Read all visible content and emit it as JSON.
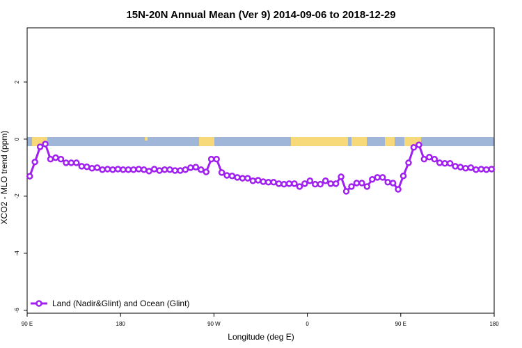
{
  "chart_data": {
    "type": "line",
    "title": "15N-20N Annual Mean (Ver 9)   2014-09-06 to 2018-12-29",
    "x_label": "Longitude (deg E)",
    "y_label": "XCO2 - MLO trend (ppm)",
    "xlim": [
      90,
      540
    ],
    "ylim": [
      -6.1,
      3.9
    ],
    "xticks": [
      {
        "value": 90,
        "label": "90 E"
      },
      {
        "value": 180,
        "label": "180"
      },
      {
        "value": 270,
        "label": "90 W"
      },
      {
        "value": 360,
        "label": "0"
      },
      {
        "value": 450,
        "label": "90 E"
      },
      {
        "value": 540,
        "label": "180"
      }
    ],
    "yticks": [
      -6,
      -4,
      -2,
      0,
      2
    ],
    "legend": "bottom-left",
    "x": [
      92.5,
      97.5,
      102.5,
      107.5,
      112.5,
      117.5,
      122.5,
      127.5,
      132.5,
      137.5,
      142.5,
      147.5,
      152.5,
      157.5,
      162.5,
      167.5,
      172.5,
      177.5,
      182.5,
      187.5,
      192.5,
      197.5,
      202.5,
      207.5,
      212.5,
      217.5,
      222.5,
      227.5,
      232.5,
      237.5,
      242.5,
      247.5,
      252.5,
      257.5,
      262.5,
      267.5,
      272.5,
      277.5,
      282.5,
      287.5,
      292.5,
      297.5,
      302.5,
      307.5,
      312.5,
      317.5,
      322.5,
      327.5,
      332.5,
      337.5,
      342.5,
      347.5,
      352.5,
      357.5,
      362.5,
      367.5,
      372.5,
      377.5,
      382.5,
      387.5,
      392.5,
      397.5,
      402.5,
      407.5,
      412.5,
      417.5,
      422.5,
      427.5,
      432.5,
      437.5,
      442.5,
      447.5,
      452.5,
      457.5,
      462.5,
      467.5,
      472.5,
      477.5,
      482.5,
      487.5,
      492.5,
      497.5,
      502.5,
      507.5,
      512.5,
      517.5,
      522.5,
      527.5,
      532.5,
      537.5
    ],
    "series": [
      {
        "name": "Land (Nadir&Glint) and Ocean (Glint)",
        "color": "#a020f0",
        "values": [
          -1.3,
          -0.8,
          -0.27,
          -0.17,
          -0.7,
          -0.65,
          -0.7,
          -0.83,
          -0.83,
          -0.83,
          -0.95,
          -0.97,
          -1.02,
          -1.0,
          -1.07,
          -1.05,
          -1.07,
          -1.05,
          -1.07,
          -1.07,
          -1.07,
          -1.05,
          -1.07,
          -1.12,
          -1.05,
          -1.1,
          -1.07,
          -1.07,
          -1.1,
          -1.1,
          -1.07,
          -1.0,
          -0.98,
          -1.07,
          -1.15,
          -0.7,
          -0.7,
          -1.17,
          -1.27,
          -1.29,
          -1.34,
          -1.37,
          -1.37,
          -1.46,
          -1.44,
          -1.49,
          -1.51,
          -1.51,
          -1.56,
          -1.58,
          -1.56,
          -1.56,
          -1.66,
          -1.56,
          -1.46,
          -1.58,
          -1.58,
          -1.46,
          -1.56,
          -1.56,
          -1.32,
          -1.83,
          -1.66,
          -1.54,
          -1.54,
          -1.66,
          -1.41,
          -1.34,
          -1.34,
          -1.51,
          -1.54,
          -1.76,
          -1.29,
          -0.83,
          -0.29,
          -0.2,
          -0.7,
          -0.63,
          -0.7,
          -0.83,
          -0.85,
          -0.85,
          -0.95,
          -0.98,
          -1.02,
          -1.0,
          -1.07,
          -1.05,
          -1.07,
          -1.05
        ]
      }
    ]
  }
}
